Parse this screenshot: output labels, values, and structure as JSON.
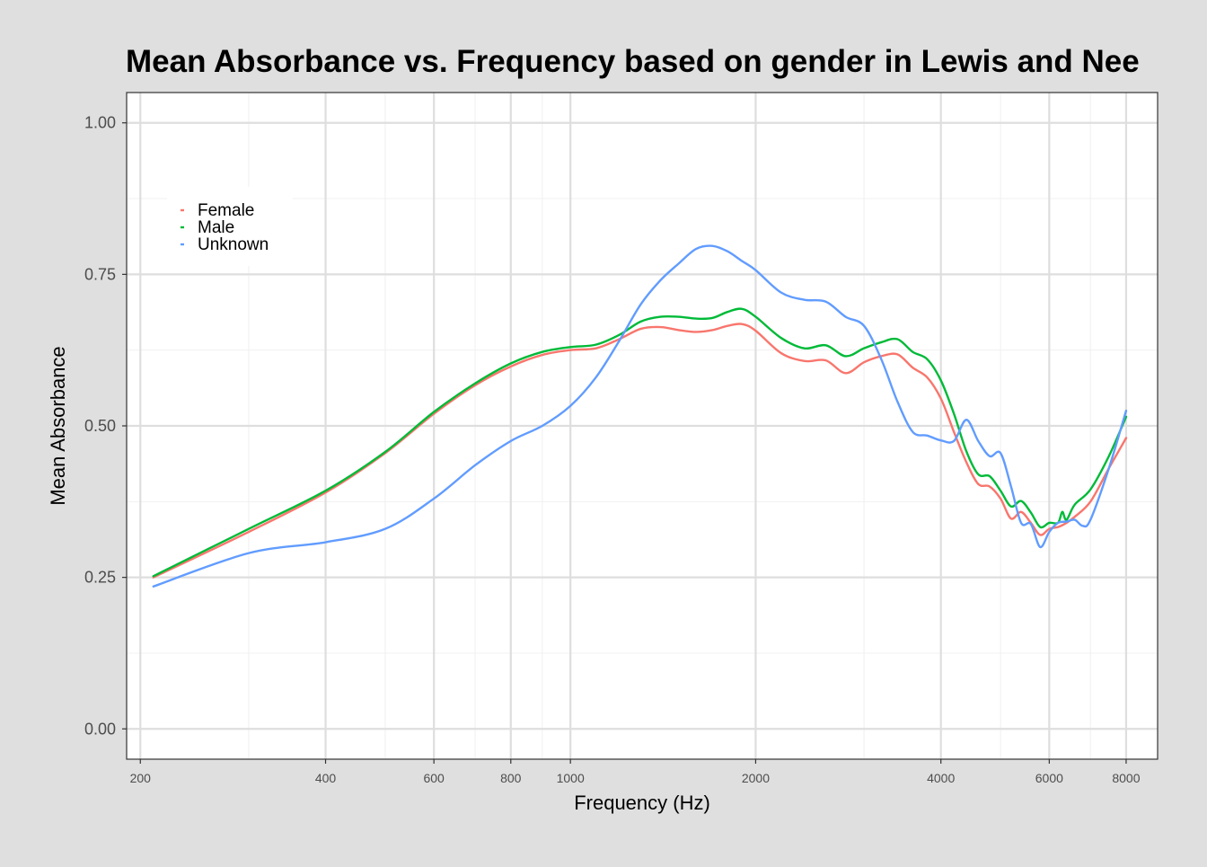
{
  "chart_data": {
    "type": "line",
    "title": "Mean Absorbance vs. Frequency based on gender in Lewis and Nee",
    "xlabel": "Frequency (Hz)",
    "ylabel": "Mean Absorbance",
    "x_scale": "log10",
    "xlim": [
      190,
      9000
    ],
    "ylim": [
      -0.05,
      1.05
    ],
    "grid": true,
    "legend_position": "top-left (inside plot)",
    "x_major_ticks": [
      200,
      400,
      600,
      800,
      1000,
      2000,
      4000,
      6000,
      8000
    ],
    "x_tick_labels": [
      "200",
      "400",
      "600",
      "800",
      "1000",
      "2000",
      "4000",
      "6000",
      "8000"
    ],
    "x_minor_ticks": [
      300,
      500,
      700,
      900,
      3000,
      5000,
      7000
    ],
    "y_major_ticks": [
      0,
      0.25,
      0.5,
      0.75,
      1
    ],
    "y_tick_labels": [
      "0.00",
      "0.25",
      "0.50",
      "0.75",
      "1.00"
    ],
    "y_minor_ticks": [
      0.125,
      0.375,
      0.625,
      0.875
    ],
    "series": [
      {
        "name": "Female",
        "color": "#f8766d",
        "x": [
          210,
          300,
          400,
          500,
          600,
          700,
          800,
          900,
          1000,
          1100,
          1200,
          1300,
          1400,
          1500,
          1600,
          1700,
          1800,
          1900,
          2000,
          2200,
          2400,
          2600,
          2800,
          3000,
          3200,
          3400,
          3600,
          3800,
          4000,
          4200,
          4400,
          4600,
          4800,
          5000,
          5200,
          5400,
          5600,
          5800,
          6000,
          6200,
          6400,
          6600,
          7000,
          7500,
          8000
        ],
        "y": [
          0.25,
          0.325,
          0.39,
          0.455,
          0.52,
          0.567,
          0.598,
          0.617,
          0.625,
          0.628,
          0.643,
          0.66,
          0.663,
          0.658,
          0.655,
          0.658,
          0.665,
          0.668,
          0.657,
          0.62,
          0.607,
          0.608,
          0.587,
          0.605,
          0.615,
          0.618,
          0.596,
          0.58,
          0.545,
          0.49,
          0.44,
          0.404,
          0.4,
          0.38,
          0.347,
          0.358,
          0.34,
          0.32,
          0.33,
          0.333,
          0.34,
          0.35,
          0.375,
          0.43,
          0.48
        ]
      },
      {
        "name": "Male",
        "color": "#00ba38",
        "x": [
          210,
          300,
          400,
          500,
          600,
          700,
          800,
          900,
          1000,
          1100,
          1200,
          1300,
          1400,
          1500,
          1600,
          1700,
          1800,
          1900,
          2000,
          2200,
          2400,
          2600,
          2800,
          3000,
          3200,
          3400,
          3600,
          3800,
          4000,
          4200,
          4400,
          4600,
          4800,
          5000,
          5200,
          5400,
          5600,
          5800,
          6000,
          6200,
          6300,
          6400,
          6600,
          7000,
          7500,
          8000
        ],
        "y": [
          0.252,
          0.33,
          0.393,
          0.457,
          0.523,
          0.57,
          0.603,
          0.622,
          0.63,
          0.634,
          0.65,
          0.672,
          0.68,
          0.68,
          0.677,
          0.678,
          0.688,
          0.693,
          0.68,
          0.645,
          0.628,
          0.633,
          0.615,
          0.628,
          0.638,
          0.643,
          0.622,
          0.61,
          0.575,
          0.52,
          0.458,
          0.42,
          0.417,
          0.393,
          0.367,
          0.376,
          0.357,
          0.333,
          0.34,
          0.34,
          0.358,
          0.345,
          0.37,
          0.395,
          0.45,
          0.515
        ]
      },
      {
        "name": "Unknown",
        "color": "#619cff",
        "x": [
          210,
          300,
          400,
          500,
          600,
          700,
          800,
          900,
          1000,
          1100,
          1200,
          1300,
          1400,
          1500,
          1600,
          1700,
          1800,
          1900,
          2000,
          2200,
          2400,
          2600,
          2800,
          3000,
          3200,
          3400,
          3600,
          3800,
          4000,
          4200,
          4400,
          4600,
          4800,
          5000,
          5200,
          5400,
          5600,
          5800,
          6000,
          6200,
          6400,
          6600,
          6800,
          7000,
          7500,
          8000
        ],
        "y": [
          0.235,
          0.29,
          0.308,
          0.33,
          0.38,
          0.435,
          0.475,
          0.5,
          0.533,
          0.58,
          0.64,
          0.7,
          0.74,
          0.768,
          0.792,
          0.797,
          0.788,
          0.772,
          0.757,
          0.72,
          0.708,
          0.705,
          0.68,
          0.665,
          0.61,
          0.54,
          0.49,
          0.484,
          0.476,
          0.475,
          0.51,
          0.475,
          0.45,
          0.455,
          0.4,
          0.34,
          0.338,
          0.3,
          0.325,
          0.34,
          0.342,
          0.345,
          0.335,
          0.345,
          0.43,
          0.525
        ]
      }
    ]
  }
}
